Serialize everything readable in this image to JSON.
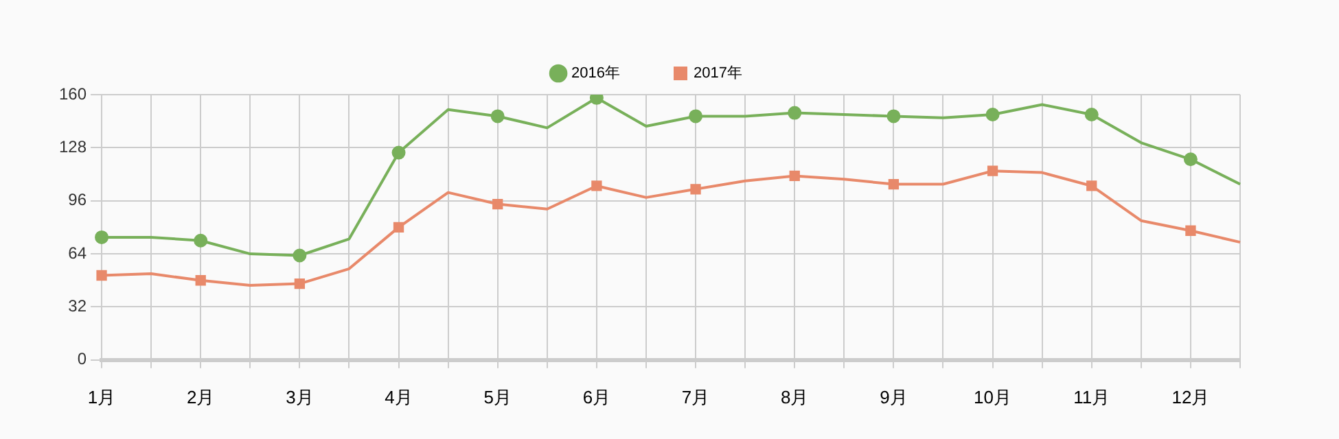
{
  "chart_data": {
    "type": "line",
    "categories": [
      "1月",
      null,
      "2月",
      null,
      "3月",
      null,
      "4月",
      null,
      "5月",
      null,
      "6月",
      null,
      "7月",
      null,
      "8月",
      null,
      "9月",
      null,
      "10月",
      null,
      "11月",
      null,
      "12月",
      null
    ],
    "series": [
      {
        "name": "2016年",
        "color": "#78b05a",
        "marker": "circle",
        "values": [
          74,
          74,
          72,
          64,
          63,
          73,
          125,
          151,
          147,
          140,
          158,
          141,
          147,
          147,
          149,
          148,
          147,
          146,
          148,
          154,
          148,
          131,
          121,
          106
        ]
      },
      {
        "name": "2017年",
        "color": "#e8896a",
        "marker": "square",
        "values": [
          51,
          52,
          48,
          45,
          46,
          55,
          80,
          101,
          94,
          91,
          105,
          98,
          103,
          108,
          111,
          109,
          106,
          106,
          114,
          113,
          105,
          84,
          78,
          71
        ]
      }
    ],
    "ylim": [
      0,
      160
    ],
    "yticks": [
      0,
      32,
      64,
      96,
      128,
      160
    ],
    "grid": true,
    "legend": "top"
  }
}
